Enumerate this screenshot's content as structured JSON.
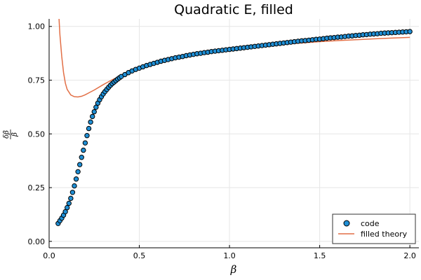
{
  "chart_data": {
    "type": "scatter",
    "title": "Quadratic E, filled",
    "xlabel": "β",
    "ylabel": {
      "numerator": "δβ",
      "denominator": "β"
    },
    "xlim": [
      0.0,
      2.05
    ],
    "ylim": [
      -0.03,
      1.035
    ],
    "xticks": [
      0.0,
      0.5,
      1.0,
      1.5,
      2.0
    ],
    "xtick_labels": [
      "0.0",
      "0.5",
      "1.0",
      "1.5",
      "2.0"
    ],
    "yticks": [
      0.0,
      0.25,
      0.5,
      0.75,
      1.0
    ],
    "ytick_labels": [
      "0.00",
      "0.25",
      "0.50",
      "0.75",
      "1.00"
    ],
    "grid": true,
    "legend_position": "bottom-right",
    "colors": {
      "code": "#1f8ed4",
      "theory": "#e26f46"
    },
    "series": [
      {
        "name": "code",
        "kind": "scatter",
        "points": [
          [
            0.05,
            0.083
          ],
          [
            0.06,
            0.096
          ],
          [
            0.07,
            0.108
          ],
          [
            0.08,
            0.122
          ],
          [
            0.09,
            0.138
          ],
          [
            0.1,
            0.157
          ],
          [
            0.11,
            0.177
          ],
          [
            0.12,
            0.2
          ],
          [
            0.13,
            0.228
          ],
          [
            0.14,
            0.258
          ],
          [
            0.15,
            0.29
          ],
          [
            0.16,
            0.324
          ],
          [
            0.17,
            0.357
          ],
          [
            0.18,
            0.391
          ],
          [
            0.19,
            0.424
          ],
          [
            0.2,
            0.458
          ],
          [
            0.21,
            0.492
          ],
          [
            0.22,
            0.525
          ],
          [
            0.23,
            0.555
          ],
          [
            0.24,
            0.581
          ],
          [
            0.25,
            0.603
          ],
          [
            0.26,
            0.624
          ],
          [
            0.27,
            0.643
          ],
          [
            0.28,
            0.659
          ],
          [
            0.29,
            0.673
          ],
          [
            0.3,
            0.686
          ],
          [
            0.31,
            0.697
          ],
          [
            0.32,
            0.707
          ],
          [
            0.33,
            0.717
          ],
          [
            0.34,
            0.726
          ],
          [
            0.35,
            0.734
          ],
          [
            0.36,
            0.741
          ],
          [
            0.37,
            0.748
          ],
          [
            0.38,
            0.755
          ],
          [
            0.39,
            0.761
          ],
          [
            0.4,
            0.767
          ],
          [
            0.42,
            0.776
          ],
          [
            0.44,
            0.785
          ],
          [
            0.46,
            0.793
          ],
          [
            0.48,
            0.8
          ],
          [
            0.5,
            0.806
          ],
          [
            0.52,
            0.812
          ],
          [
            0.54,
            0.818
          ],
          [
            0.56,
            0.823
          ],
          [
            0.58,
            0.828
          ],
          [
            0.6,
            0.833
          ],
          [
            0.62,
            0.838
          ],
          [
            0.64,
            0.842
          ],
          [
            0.66,
            0.846
          ],
          [
            0.68,
            0.85
          ],
          [
            0.7,
            0.854
          ],
          [
            0.72,
            0.857
          ],
          [
            0.74,
            0.86
          ],
          [
            0.76,
            0.864
          ],
          [
            0.78,
            0.867
          ],
          [
            0.8,
            0.87
          ],
          [
            0.82,
            0.873
          ],
          [
            0.84,
            0.875
          ],
          [
            0.86,
            0.878
          ],
          [
            0.88,
            0.88
          ],
          [
            0.9,
            0.883
          ],
          [
            0.92,
            0.885
          ],
          [
            0.94,
            0.887
          ],
          [
            0.96,
            0.889
          ],
          [
            0.98,
            0.891
          ],
          [
            1.0,
            0.893
          ],
          [
            1.02,
            0.895
          ],
          [
            1.04,
            0.897
          ],
          [
            1.06,
            0.899
          ],
          [
            1.08,
            0.901
          ],
          [
            1.1,
            0.903
          ],
          [
            1.12,
            0.905
          ],
          [
            1.14,
            0.907
          ],
          [
            1.16,
            0.909
          ],
          [
            1.18,
            0.911
          ],
          [
            1.2,
            0.913
          ],
          [
            1.22,
            0.915
          ],
          [
            1.24,
            0.917
          ],
          [
            1.26,
            0.919
          ],
          [
            1.28,
            0.921
          ],
          [
            1.3,
            0.923
          ],
          [
            1.32,
            0.925
          ],
          [
            1.34,
            0.927
          ],
          [
            1.36,
            0.929
          ],
          [
            1.38,
            0.931
          ],
          [
            1.4,
            0.933
          ],
          [
            1.42,
            0.934
          ],
          [
            1.44,
            0.936
          ],
          [
            1.46,
            0.938
          ],
          [
            1.48,
            0.94
          ],
          [
            1.5,
            0.941
          ],
          [
            1.52,
            0.943
          ],
          [
            1.54,
            0.945
          ],
          [
            1.56,
            0.947
          ],
          [
            1.58,
            0.948
          ],
          [
            1.6,
            0.95
          ],
          [
            1.62,
            0.951
          ],
          [
            1.64,
            0.953
          ],
          [
            1.66,
            0.955
          ],
          [
            1.68,
            0.956
          ],
          [
            1.7,
            0.958
          ],
          [
            1.72,
            0.959
          ],
          [
            1.74,
            0.961
          ],
          [
            1.76,
            0.962
          ],
          [
            1.78,
            0.964
          ],
          [
            1.8,
            0.965
          ],
          [
            1.82,
            0.966
          ],
          [
            1.84,
            0.968
          ],
          [
            1.86,
            0.969
          ],
          [
            1.88,
            0.97
          ],
          [
            1.9,
            0.971
          ],
          [
            1.92,
            0.972
          ],
          [
            1.94,
            0.973
          ],
          [
            1.96,
            0.974
          ],
          [
            1.98,
            0.975
          ],
          [
            2.0,
            0.976
          ]
        ]
      },
      {
        "name": "filled theory",
        "kind": "line",
        "points": [
          [
            0.055,
            1.035
          ],
          [
            0.06,
            0.96
          ],
          [
            0.07,
            0.86
          ],
          [
            0.08,
            0.785
          ],
          [
            0.09,
            0.736
          ],
          [
            0.1,
            0.707
          ],
          [
            0.12,
            0.681
          ],
          [
            0.14,
            0.673
          ],
          [
            0.16,
            0.672
          ],
          [
            0.18,
            0.675
          ],
          [
            0.2,
            0.682
          ],
          [
            0.25,
            0.704
          ],
          [
            0.3,
            0.729
          ],
          [
            0.35,
            0.752
          ],
          [
            0.4,
            0.772
          ],
          [
            0.45,
            0.789
          ],
          [
            0.5,
            0.805
          ],
          [
            0.6,
            0.83
          ],
          [
            0.7,
            0.851
          ],
          [
            0.8,
            0.867
          ],
          [
            0.9,
            0.881
          ],
          [
            1.0,
            0.893
          ],
          [
            1.1,
            0.902
          ],
          [
            1.2,
            0.91
          ],
          [
            1.3,
            0.917
          ],
          [
            1.4,
            0.923
          ],
          [
            1.5,
            0.929
          ],
          [
            1.6,
            0.934
          ],
          [
            1.7,
            0.938
          ],
          [
            1.8,
            0.942
          ],
          [
            1.9,
            0.946
          ],
          [
            2.0,
            0.949
          ]
        ]
      }
    ]
  }
}
